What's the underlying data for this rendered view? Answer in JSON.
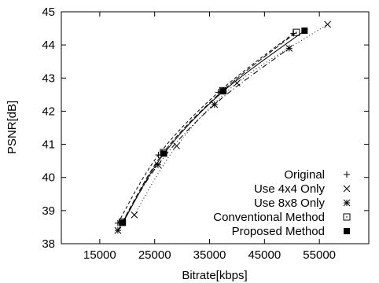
{
  "chart_data": {
    "type": "line",
    "title": "",
    "xlabel": "Bitrate[kbps]",
    "ylabel": "PSNR[dB]",
    "xlim": [
      8000,
      64000
    ],
    "ylim": [
      38,
      45
    ],
    "xticks": [
      15000,
      25000,
      35000,
      45000,
      55000
    ],
    "yticks": [
      38,
      39,
      40,
      41,
      42,
      43,
      44,
      45
    ],
    "grid": false,
    "legend_position": "bottom-right",
    "series": [
      {
        "name": "Original",
        "marker": "plus",
        "dash": "4 3",
        "x": [
          18300,
          25700,
          36600,
          50300
        ],
        "y": [
          38.62,
          40.68,
          42.57,
          44.35
        ]
      },
      {
        "name": "Use 4x4 Only",
        "marker": "x",
        "dash": "1 3",
        "x": [
          21300,
          29000,
          40000,
          56500
        ],
        "y": [
          38.87,
          40.95,
          42.85,
          44.62
        ]
      },
      {
        "name": "Use 8x8 Only",
        "marker": "star",
        "dash": "7 3 1 3",
        "x": [
          18300,
          25600,
          35900,
          49500
        ],
        "y": [
          38.4,
          40.38,
          42.2,
          43.9
        ]
      },
      {
        "name": "Conventional Method",
        "marker": "boxdot",
        "dash": "6 3",
        "x": [
          19100,
          26600,
          37400,
          50800
        ],
        "y": [
          38.65,
          40.75,
          42.62,
          44.38
        ]
      },
      {
        "name": "Proposed Method",
        "marker": "filledbox",
        "dash": "",
        "x": [
          19200,
          26700,
          37500,
          52300
        ],
        "y": [
          38.63,
          40.72,
          42.6,
          44.43
        ]
      }
    ]
  }
}
